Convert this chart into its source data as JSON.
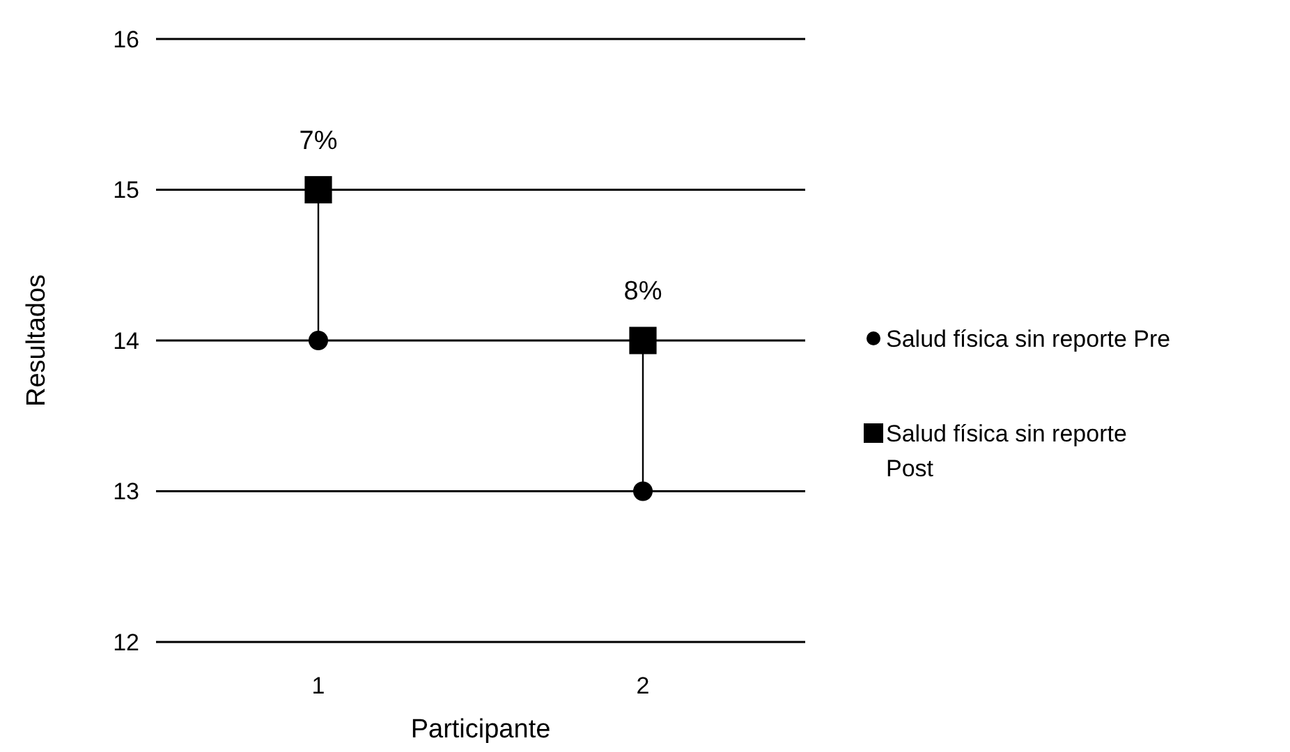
{
  "chart_data": {
    "type": "scatter",
    "xlabel": "Participante",
    "ylabel": "Resultados",
    "categories": [
      "1",
      "2"
    ],
    "series": [
      {
        "type": "line",
        "color": "#000000",
        "marker": "none",
        "x": [
          "1",
          "1"
        ],
        "values": [
          14,
          15
        ]
      },
      {
        "type": "line",
        "color": "#000000",
        "marker": "none",
        "x": [
          "2",
          "2"
        ],
        "values": [
          13,
          14
        ]
      },
      {
        "name": "Salud física sin reporte Pre",
        "color": "#000000",
        "marker": "circle",
        "values": [
          14,
          13
        ]
      },
      {
        "name": "Salud física sin reporte Post",
        "color": "#000000",
        "marker": "square",
        "values": [
          15,
          14
        ]
      }
    ],
    "annotations": [
      {
        "text": "7%",
        "x": "1",
        "y": 15
      },
      {
        "text": "8%",
        "x": "2",
        "y": 14
      }
    ],
    "ylim": [
      12,
      16
    ],
    "yticks": [
      12,
      13,
      14,
      15,
      16
    ],
    "grid": "y",
    "legend": "right"
  }
}
